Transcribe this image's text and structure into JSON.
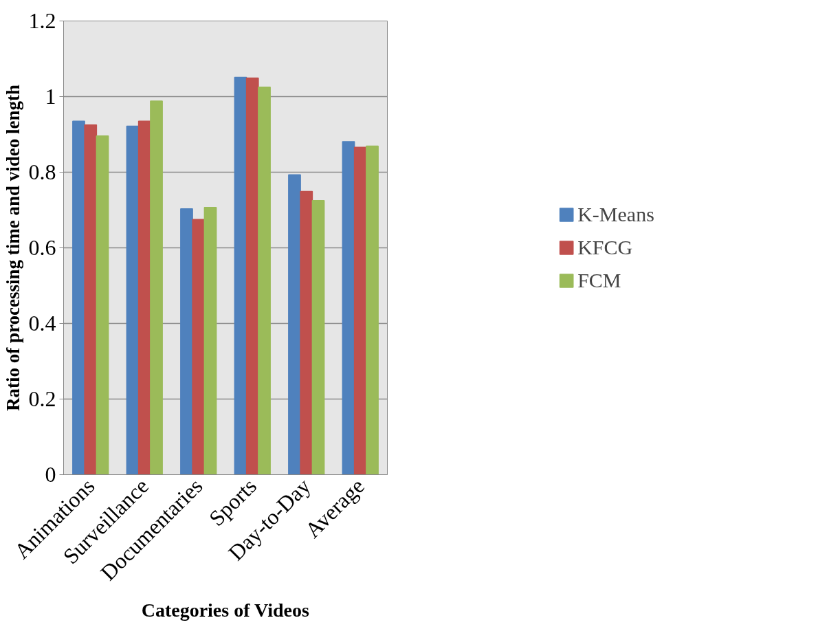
{
  "chart_data": {
    "type": "bar",
    "xlabel": "Categories of Videos",
    "ylabel": "Ratio of processing time and video length",
    "categories": [
      "Animations",
      "Surveillance",
      "Documentaries",
      "Sports",
      "Day-to-Day",
      "Average"
    ],
    "series": [
      {
        "name": "K-Means",
        "color": "#4f81bd",
        "values": [
          0.935,
          0.922,
          0.703,
          1.051,
          0.793,
          0.881
        ]
      },
      {
        "name": "KFCG",
        "color": "#c0504d",
        "values": [
          0.925,
          0.935,
          0.675,
          1.049,
          0.749,
          0.866
        ]
      },
      {
        "name": "FCM",
        "color": "#9bbb59",
        "values": [
          0.896,
          0.988,
          0.707,
          1.025,
          0.725,
          0.869
        ]
      }
    ],
    "ylim": [
      0,
      1.2
    ],
    "yticks": [
      0,
      0.2,
      0.4,
      0.6,
      0.8,
      1,
      1.2
    ],
    "grid": "y",
    "legend": "right"
  }
}
